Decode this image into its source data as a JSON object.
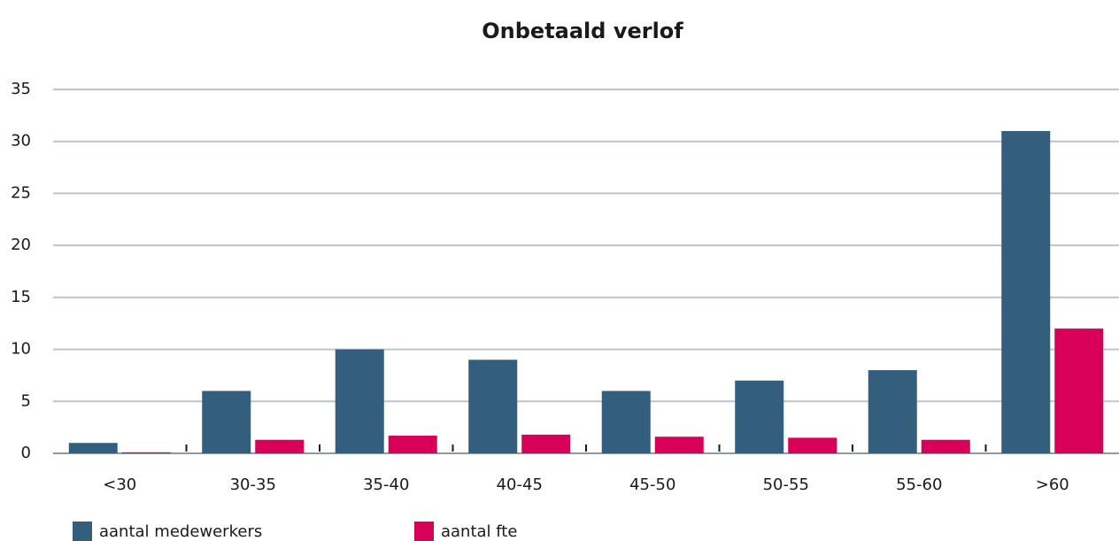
{
  "chart_data": {
    "type": "bar",
    "title": "Onbetaald verlof",
    "categories": [
      "<30",
      "30-35",
      "35-40",
      "40-45",
      "45-50",
      "50-55",
      "55-60",
      ">60"
    ],
    "series": [
      {
        "name": "aantal medewerkers",
        "color": "#335e7e",
        "values": [
          1,
          6,
          10,
          9,
          6,
          7,
          8,
          31
        ]
      },
      {
        "name": "aantal fte",
        "color": "#d9005a",
        "values": [
          0.1,
          1.3,
          1.7,
          1.8,
          1.6,
          1.5,
          1.3,
          12
        ]
      }
    ],
    "ylim": [
      0,
      35
    ],
    "yticks": [
      0,
      5,
      10,
      15,
      20,
      25,
      30,
      35
    ],
    "grid": true
  }
}
